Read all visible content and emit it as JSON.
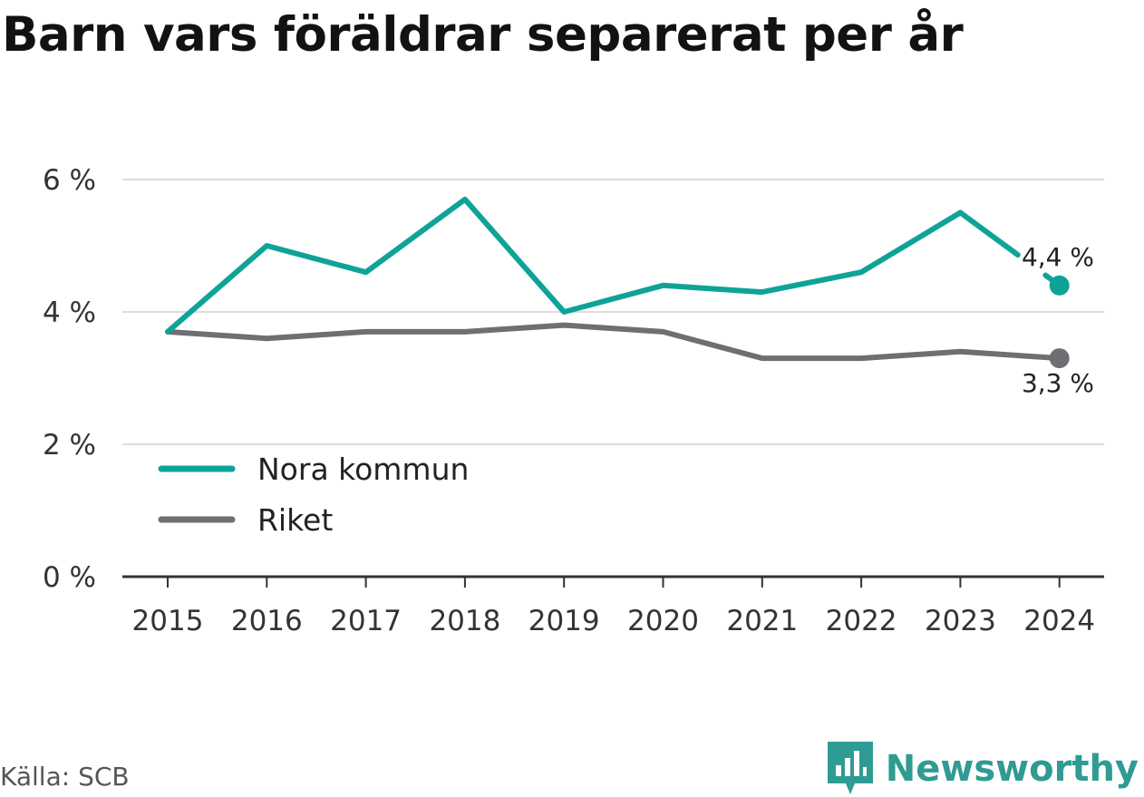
{
  "chart_data": {
    "type": "line",
    "title": "Barn vars föräldrar separerat per år",
    "x": [
      "2015",
      "2016",
      "2017",
      "2018",
      "2019",
      "2020",
      "2021",
      "2022",
      "2023",
      "2024"
    ],
    "series": [
      {
        "name": "Nora kommun",
        "color": "#0fa398",
        "values": [
          3.7,
          5.0,
          4.6,
          5.7,
          4.0,
          4.4,
          4.3,
          4.6,
          5.5,
          4.4
        ],
        "end_label": "4,4 %"
      },
      {
        "name": "Riket",
        "color": "#6e6e73",
        "values": [
          3.7,
          3.6,
          3.7,
          3.7,
          3.8,
          3.7,
          3.3,
          3.3,
          3.4,
          3.3
        ],
        "end_label": "3,3 %"
      }
    ],
    "yticks": [
      {
        "value": 0,
        "label": "0 %"
      },
      {
        "value": 2,
        "label": "2 %"
      },
      {
        "value": 4,
        "label": "4 %"
      },
      {
        "value": 6,
        "label": "6 %"
      }
    ],
    "ylim": [
      0,
      6
    ],
    "grid": true,
    "legend_position": "bottom-left",
    "source": "Källa: SCB"
  },
  "brand": {
    "name": "Newsworthy",
    "icon": "newsworthy-logo-icon"
  }
}
